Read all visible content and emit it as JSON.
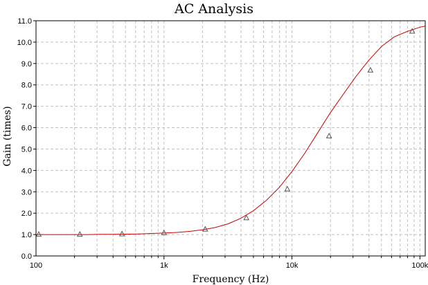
{
  "chart_data": {
    "type": "line",
    "title": "AC Analysis",
    "xlabel": "Frequency (Hz)",
    "ylabel": "Gain (times)",
    "x_scale": "log",
    "xlim": [
      100,
      110000
    ],
    "ylim": [
      0,
      11
    ],
    "x_tick_values": [
      100,
      1000,
      10000,
      100000
    ],
    "x_tick_labels": [
      "100",
      "1k",
      "10k",
      "100k"
    ],
    "y_tick_values": [
      0,
      1,
      2,
      3,
      4,
      5,
      6,
      7,
      8,
      9,
      10,
      11
    ],
    "y_tick_labels": [
      "0.0",
      "1.0",
      "2.0",
      "3.0",
      "4.0",
      "5.0",
      "6.0",
      "7.0",
      "8.0",
      "9.0",
      "10.0",
      "11.0"
    ],
    "grid": true,
    "legend": "none",
    "series": [
      {
        "line_color": "#cc0000",
        "marker": "triangle",
        "marker_color": "#555555",
        "x": [
          100,
          126,
          158,
          200,
          251,
          316,
          398,
          501,
          631,
          794,
          1000,
          1259,
          1585,
          1995,
          2512,
          3162,
          3981,
          5012,
          6310,
          7943,
          10000,
          12589,
          15849,
          19953,
          25119,
          31623,
          39811,
          50119,
          63096,
          79433,
          100000,
          110000
        ],
        "y": [
          1.0,
          1.0,
          1.0,
          1.0,
          1.0,
          1.01,
          1.01,
          1.02,
          1.03,
          1.05,
          1.07,
          1.1,
          1.15,
          1.22,
          1.33,
          1.5,
          1.76,
          2.12,
          2.6,
          3.2,
          3.95,
          4.8,
          5.75,
          6.7,
          7.55,
          8.4,
          9.15,
          9.8,
          10.25,
          10.5,
          10.7,
          10.75
        ],
        "markers_x": [
          105,
          220,
          470,
          1000,
          2100,
          4400,
          9200,
          19500,
          41000,
          87000
        ],
        "markers_y": [
          1.0,
          1.0,
          1.02,
          1.07,
          1.24,
          1.77,
          3.12,
          5.6,
          8.68,
          10.5
        ]
      }
    ]
  }
}
